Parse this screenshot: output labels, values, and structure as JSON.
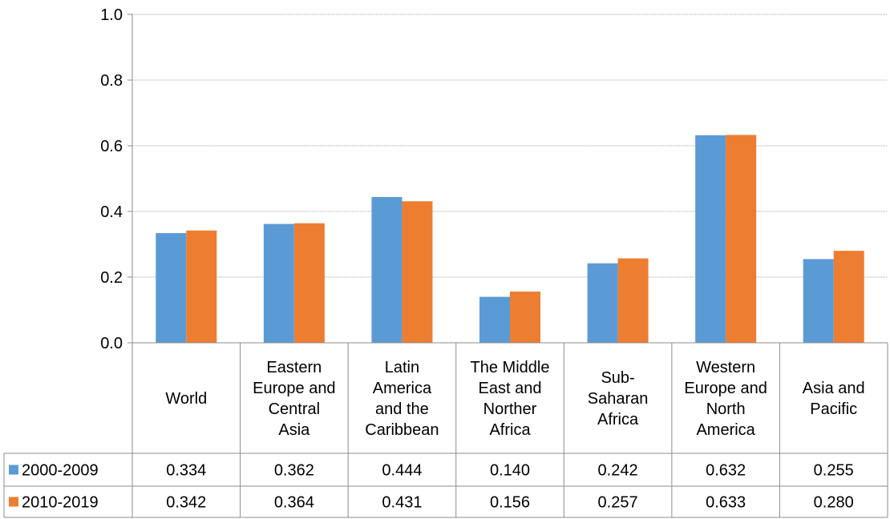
{
  "colors": {
    "series1": "#5b9bd5",
    "series2": "#ed7d31",
    "grid": "#a6a6a6",
    "axis": "#8c8c8c"
  },
  "chart_data": {
    "type": "bar",
    "title": "",
    "xlabel": "",
    "ylabel": "",
    "ylim": [
      0,
      1.0
    ],
    "yticks": [
      "0.0",
      "0.2",
      "0.4",
      "0.6",
      "0.8",
      "1.0"
    ],
    "grid": true,
    "legend": "data-table",
    "categories": [
      [
        "World"
      ],
      [
        "Eastern",
        "Europe and",
        "Central",
        "Asia"
      ],
      [
        "Latin",
        "America",
        "and the",
        "Caribbean"
      ],
      [
        "The Middle",
        "East and",
        "Norther",
        "Africa"
      ],
      [
        "Sub-",
        "Saharan",
        "Africa"
      ],
      [
        "Western",
        "Europe and",
        "North",
        "America"
      ],
      [
        "Asia and",
        "Pacific"
      ]
    ],
    "series": [
      {
        "name": "2000-2009",
        "values": [
          0.334,
          0.362,
          0.444,
          0.14,
          0.242,
          0.632,
          0.255
        ],
        "labels": [
          "0.334",
          "0.362",
          "0.444",
          "0.140",
          "0.242",
          "0.632",
          "0.255"
        ]
      },
      {
        "name": "2010-2019",
        "values": [
          0.342,
          0.364,
          0.431,
          0.156,
          0.257,
          0.633,
          0.28
        ],
        "labels": [
          "0.342",
          "0.364",
          "0.431",
          "0.156",
          "0.257",
          "0.633",
          "0.280"
        ]
      }
    ]
  }
}
